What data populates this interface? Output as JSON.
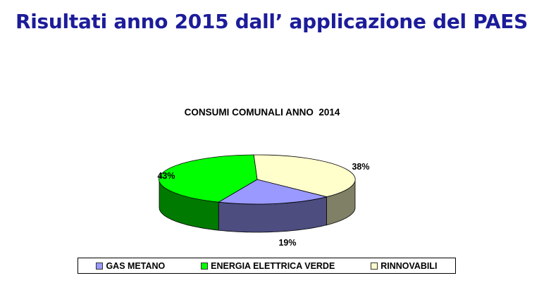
{
  "slide_title": "Risultati anno 2015 dall’ applicazione del PAES",
  "chart_data": {
    "type": "pie",
    "style": "3d",
    "title": "CONSUMI COMUNALI ANNO  2014",
    "categories": [
      "GAS METANO",
      "ENERGIA ELETTRICA VERDE",
      "RINNOVABILI"
    ],
    "values": [
      19,
      43,
      38
    ],
    "data_labels": [
      "19%",
      "43%",
      "38%"
    ],
    "colors": [
      "#9999ff",
      "#00ff00",
      "#ffffcc"
    ],
    "side_colors": [
      "#4d4d80",
      "#007a00",
      "#808066"
    ],
    "legend_position": "bottom"
  }
}
